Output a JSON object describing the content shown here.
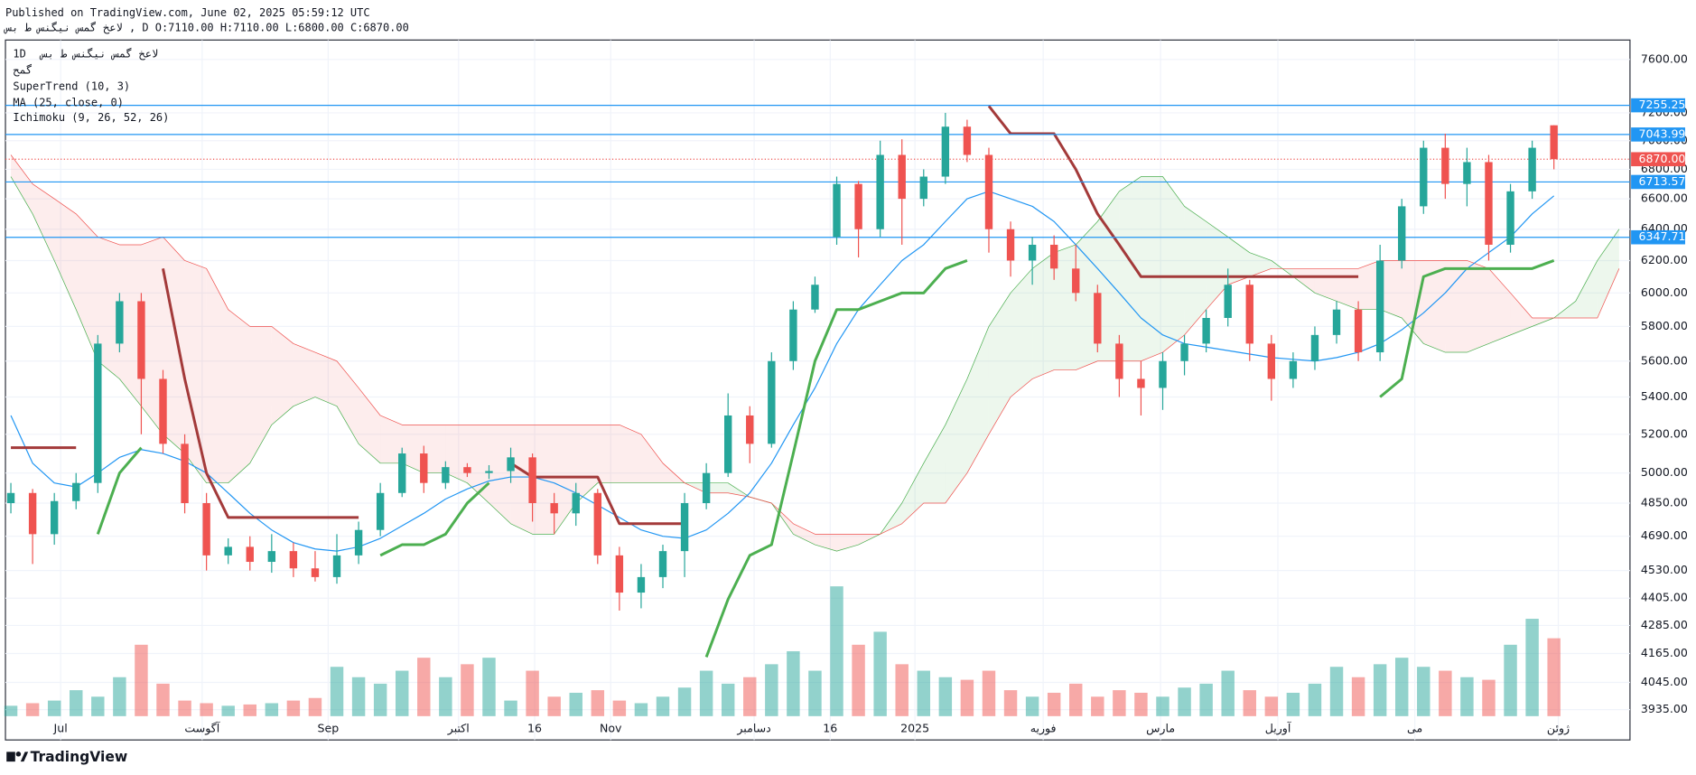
{
  "header": {
    "published": "Published on TradingView.com, June 02, 2025 05:59:12 UTC",
    "line2": "لاعخ گمس نیگنس ط بس , D O:7110.00 H:7110.00 L:6800.00 C:6870.00"
  },
  "footer": {
    "brand": "TradingView"
  },
  "chart_data": {
    "type": "candlestick",
    "log_scale": true,
    "grid": true,
    "legend": {
      "interval": "1D",
      "symbol": "لاعخ گمس نیگنس ط بس",
      "sub": "گمح"
    },
    "ylim": [
      3816,
      7751
    ],
    "yticks": [
      {
        "value": 7600,
        "label": "7600.00"
      },
      {
        "value": 7200,
        "label": "7200.00"
      },
      {
        "value": 7000,
        "label": "7000.00"
      },
      {
        "value": 6800,
        "label": "6800.00"
      },
      {
        "value": 6600,
        "label": "6600.00"
      },
      {
        "value": 6400,
        "label": "6400.00"
      },
      {
        "value": 6200,
        "label": "6200.00"
      },
      {
        "value": 6000,
        "label": "6000.00"
      },
      {
        "value": 5800,
        "label": "5800.00"
      },
      {
        "value": 5600,
        "label": "5600.00"
      },
      {
        "value": 5400,
        "label": "5400.00"
      },
      {
        "value": 5200,
        "label": "5200.00"
      },
      {
        "value": 5000,
        "label": "5000.00"
      },
      {
        "value": 4850,
        "label": "4850.00"
      },
      {
        "value": 4690,
        "label": "4690.00"
      },
      {
        "value": 4530,
        "label": "4530.00"
      },
      {
        "value": 4405,
        "label": "4405.00"
      },
      {
        "value": 4285,
        "label": "4285.00"
      },
      {
        "value": 4165,
        "label": "4165.00"
      },
      {
        "value": 4045,
        "label": "4045.00"
      },
      {
        "value": 3935,
        "label": "3935.00"
      }
    ],
    "xlim": [
      -0.25,
      74.5
    ],
    "xticks": [
      {
        "value": 2.29,
        "label": "Jul"
      },
      {
        "value": 8.8,
        "label": "آگوست"
      },
      {
        "value": 14.6,
        "label": "Sep"
      },
      {
        "value": 20.6,
        "label": "اکتبر"
      },
      {
        "value": 24.1,
        "label": "16"
      },
      {
        "value": 27.6,
        "label": "Nov"
      },
      {
        "value": 34.2,
        "label": "دسامبر"
      },
      {
        "value": 37.7,
        "label": "16"
      },
      {
        "value": 41.6,
        "label": "2025"
      },
      {
        "value": 47.5,
        "label": "فوریه"
      },
      {
        "value": 52.9,
        "label": "مارس"
      },
      {
        "value": 58.3,
        "label": "آوریل"
      },
      {
        "value": 64.6,
        "label": "می"
      },
      {
        "value": 71.2,
        "label": "ژوئن"
      }
    ],
    "up_color": "#26a69a",
    "down_color": "#ef5350",
    "open": [
      4850,
      4900,
      4700,
      4860,
      4950,
      5700,
      5950,
      5500,
      5150,
      4850,
      4600,
      4640,
      4570,
      4620,
      4540,
      4500,
      4600,
      4720,
      4900,
      5100,
      4950,
      5030,
      5000,
      5010,
      5080,
      4850,
      4800,
      4900,
      4600,
      4430,
      4500,
      4620,
      4850,
      5000,
      5300,
      5150,
      5600,
      5900,
      6350,
      6700,
      6400,
      6900,
      6600,
      6750,
      7100,
      6900,
      6400,
      6200,
      6300,
      6150,
      6000,
      5700,
      5500,
      5450,
      5600,
      5700,
      5850,
      6050,
      5700,
      5500,
      5600,
      5750,
      5900,
      5650,
      6200,
      6550,
      6950,
      6700,
      6850,
      6300,
      6650,
      7110
    ],
    "high": [
      4950,
      4920,
      4900,
      5000,
      5750,
      6000,
      6000,
      5550,
      5200,
      4900,
      4680,
      4690,
      4700,
      4660,
      4620,
      4700,
      4760,
      4950,
      5130,
      5140,
      5060,
      5050,
      5040,
      5130,
      5100,
      4900,
      4950,
      4920,
      4640,
      4560,
      4650,
      4900,
      5050,
      5420,
      5350,
      5650,
      5950,
      6100,
      6750,
      6720,
      7000,
      7010,
      6800,
      7200,
      7150,
      6950,
      6450,
      6350,
      6360,
      6300,
      6050,
      5750,
      5600,
      5650,
      5750,
      5900,
      6150,
      6080,
      5750,
      5650,
      5800,
      5950,
      5950,
      6300,
      6600,
      7000,
      7050,
      6950,
      6900,
      6700,
      7000,
      7110
    ],
    "low": [
      4800,
      4560,
      4650,
      4820,
      4900,
      5650,
      5200,
      5100,
      4800,
      4530,
      4560,
      4530,
      4520,
      4500,
      4480,
      4470,
      4560,
      4690,
      4880,
      4900,
      4920,
      4980,
      4970,
      4950,
      4760,
      4700,
      4740,
      4560,
      4350,
      4360,
      4450,
      4500,
      4820,
      4980,
      5050,
      5130,
      5550,
      5880,
      6300,
      6220,
      6350,
      6300,
      6550,
      6700,
      6850,
      6250,
      6100,
      6050,
      6080,
      5950,
      5650,
      5400,
      5300,
      5330,
      5520,
      5650,
      5800,
      5600,
      5380,
      5450,
      5550,
      5700,
      5600,
      5600,
      6150,
      6500,
      6600,
      6550,
      6200,
      6250,
      6600,
      6800
    ],
    "close": [
      4900,
      4700,
      4860,
      4950,
      5700,
      5950,
      5500,
      5150,
      4850,
      4600,
      4640,
      4570,
      4620,
      4540,
      4500,
      4600,
      4720,
      4900,
      5100,
      4950,
      5030,
      5000,
      5010,
      5080,
      4850,
      4800,
      4900,
      4600,
      4430,
      4500,
      4620,
      4850,
      5000,
      5300,
      5150,
      5600,
      5900,
      6050,
      6700,
      6400,
      6900,
      6600,
      6750,
      7100,
      6900,
      6400,
      6200,
      6300,
      6150,
      6000,
      5700,
      5500,
      5450,
      5600,
      5700,
      5850,
      6050,
      5700,
      5500,
      5600,
      5750,
      5900,
      5650,
      6200,
      6550,
      6950,
      6700,
      6850,
      6300,
      6650,
      6950,
      6870
    ],
    "volume": [
      8,
      10,
      12,
      20,
      15,
      30,
      55,
      25,
      12,
      10,
      8,
      9,
      10,
      12,
      14,
      38,
      30,
      25,
      35,
      45,
      30,
      40,
      45,
      12,
      35,
      15,
      18,
      20,
      12,
      10,
      15,
      22,
      35,
      25,
      30,
      40,
      50,
      35,
      100,
      55,
      65,
      40,
      35,
      30,
      28,
      35,
      20,
      15,
      18,
      25,
      15,
      20,
      18,
      15,
      22,
      25,
      35,
      20,
      15,
      18,
      25,
      38,
      30,
      40,
      45,
      38,
      35,
      30,
      28,
      55,
      75,
      60
    ],
    "price_lines": [
      7255.25,
      7043.99,
      6713.57,
      6347.71
    ],
    "price_line_color": "#2196f3",
    "last_price": {
      "value": 6870,
      "label": "6870.00",
      "color": "#ef5350"
    },
    "supertrend": {
      "label": "SuperTrend (10, 3)",
      "up_color": "#4caf50",
      "down_color": "#a33a3a",
      "up": [
        null,
        null,
        null,
        null,
        4700,
        5000,
        5130,
        null,
        null,
        null,
        null,
        null,
        null,
        null,
        null,
        null,
        null,
        4600,
        4650,
        4650,
        4700,
        4850,
        4950,
        null,
        null,
        null,
        null,
        null,
        null,
        null,
        null,
        null,
        4150,
        4400,
        4600,
        4650,
        5100,
        5600,
        5900,
        5900,
        5950,
        6000,
        6000,
        6150,
        6200,
        null,
        null,
        null,
        null,
        null,
        null,
        null,
        null,
        null,
        null,
        null,
        null,
        null,
        null,
        null,
        null,
        null,
        null,
        5400,
        5500,
        6100,
        6150,
        6150,
        6150,
        6150,
        6150,
        6200
      ],
      "down": [
        5130,
        5130,
        5130,
        5130,
        null,
        null,
        null,
        6150,
        5500,
        5000,
        4780,
        4780,
        4780,
        4780,
        4780,
        4780,
        4780,
        null,
        null,
        null,
        null,
        null,
        null,
        5050,
        4980,
        4980,
        4980,
        4980,
        4750,
        4750,
        4750,
        4750,
        null,
        null,
        null,
        null,
        null,
        null,
        null,
        null,
        null,
        null,
        null,
        null,
        null,
        7250,
        7050,
        7050,
        7050,
        6800,
        6500,
        6300,
        6100,
        6100,
        6100,
        6100,
        6100,
        6100,
        6100,
        6100,
        6100,
        6100,
        6100,
        null,
        null,
        null,
        null,
        null,
        null,
        null,
        null,
        null
      ]
    },
    "ma": {
      "label": "MA (25, close, 0)",
      "color": "#2196f3",
      "values": [
        5300,
        5050,
        4950,
        4930,
        5000,
        5080,
        5120,
        5100,
        5060,
        5000,
        4900,
        4800,
        4720,
        4660,
        4630,
        4620,
        4640,
        4680,
        4740,
        4800,
        4870,
        4920,
        4960,
        4980,
        4980,
        4950,
        4900,
        4840,
        4780,
        4720,
        4690,
        4680,
        4720,
        4800,
        4900,
        5050,
        5250,
        5450,
        5700,
        5900,
        6050,
        6200,
        6300,
        6450,
        6600,
        6650,
        6600,
        6550,
        6450,
        6300,
        6150,
        6000,
        5850,
        5750,
        5700,
        5680,
        5660,
        5640,
        5620,
        5610,
        5600,
        5620,
        5650,
        5700,
        5780,
        5880,
        6000,
        6150,
        6250,
        6350,
        6500,
        6620
      ]
    },
    "ichimoku": {
      "label": "Ichimoku (9, 26, 52, 26)",
      "bull_color": "#4caf50",
      "bear_color": "#ef5350",
      "span_a": [
        6750,
        6500,
        6200,
        5900,
        5600,
        5500,
        5350,
        5200,
        5100,
        4950,
        4950,
        5050,
        5250,
        5350,
        5400,
        5350,
        5150,
        5050,
        5050,
        5000,
        5000,
        4950,
        4850,
        4750,
        4700,
        4700,
        4850,
        4950,
        4950,
        4950,
        4950,
        4950,
        4950,
        4950,
        4880,
        4850,
        4700,
        4650,
        4620,
        4650,
        4700,
        4850,
        5050,
        5250,
        5500,
        5800,
        6000,
        6150,
        6250,
        6300,
        6450,
        6650,
        6750,
        6750,
        6550,
        6450,
        6350,
        6250,
        6200,
        6100,
        6000,
        5950,
        5900,
        5900,
        5850,
        5700,
        5650,
        5650,
        5700,
        5750,
        5800,
        5850,
        5950,
        6200,
        6400
      ],
      "span_b": [
        6900,
        6700,
        6600,
        6500,
        6350,
        6300,
        6300,
        6350,
        6200,
        6150,
        5900,
        5800,
        5800,
        5700,
        5650,
        5600,
        5450,
        5300,
        5250,
        5250,
        5250,
        5250,
        5250,
        5250,
        5250,
        5250,
        5250,
        5250,
        5250,
        5200,
        5050,
        4950,
        4900,
        4900,
        4880,
        4850,
        4750,
        4700,
        4700,
        4700,
        4700,
        4750,
        4850,
        4850,
        5000,
        5200,
        5400,
        5500,
        5550,
        5550,
        5600,
        5600,
        5600,
        5650,
        5750,
        5900,
        6050,
        6100,
        6150,
        6150,
        6150,
        6150,
        6150,
        6200,
        6200,
        6200,
        6200,
        6200,
        6150,
        6000,
        5850,
        5850,
        5850,
        5850,
        6150
      ]
    }
  }
}
